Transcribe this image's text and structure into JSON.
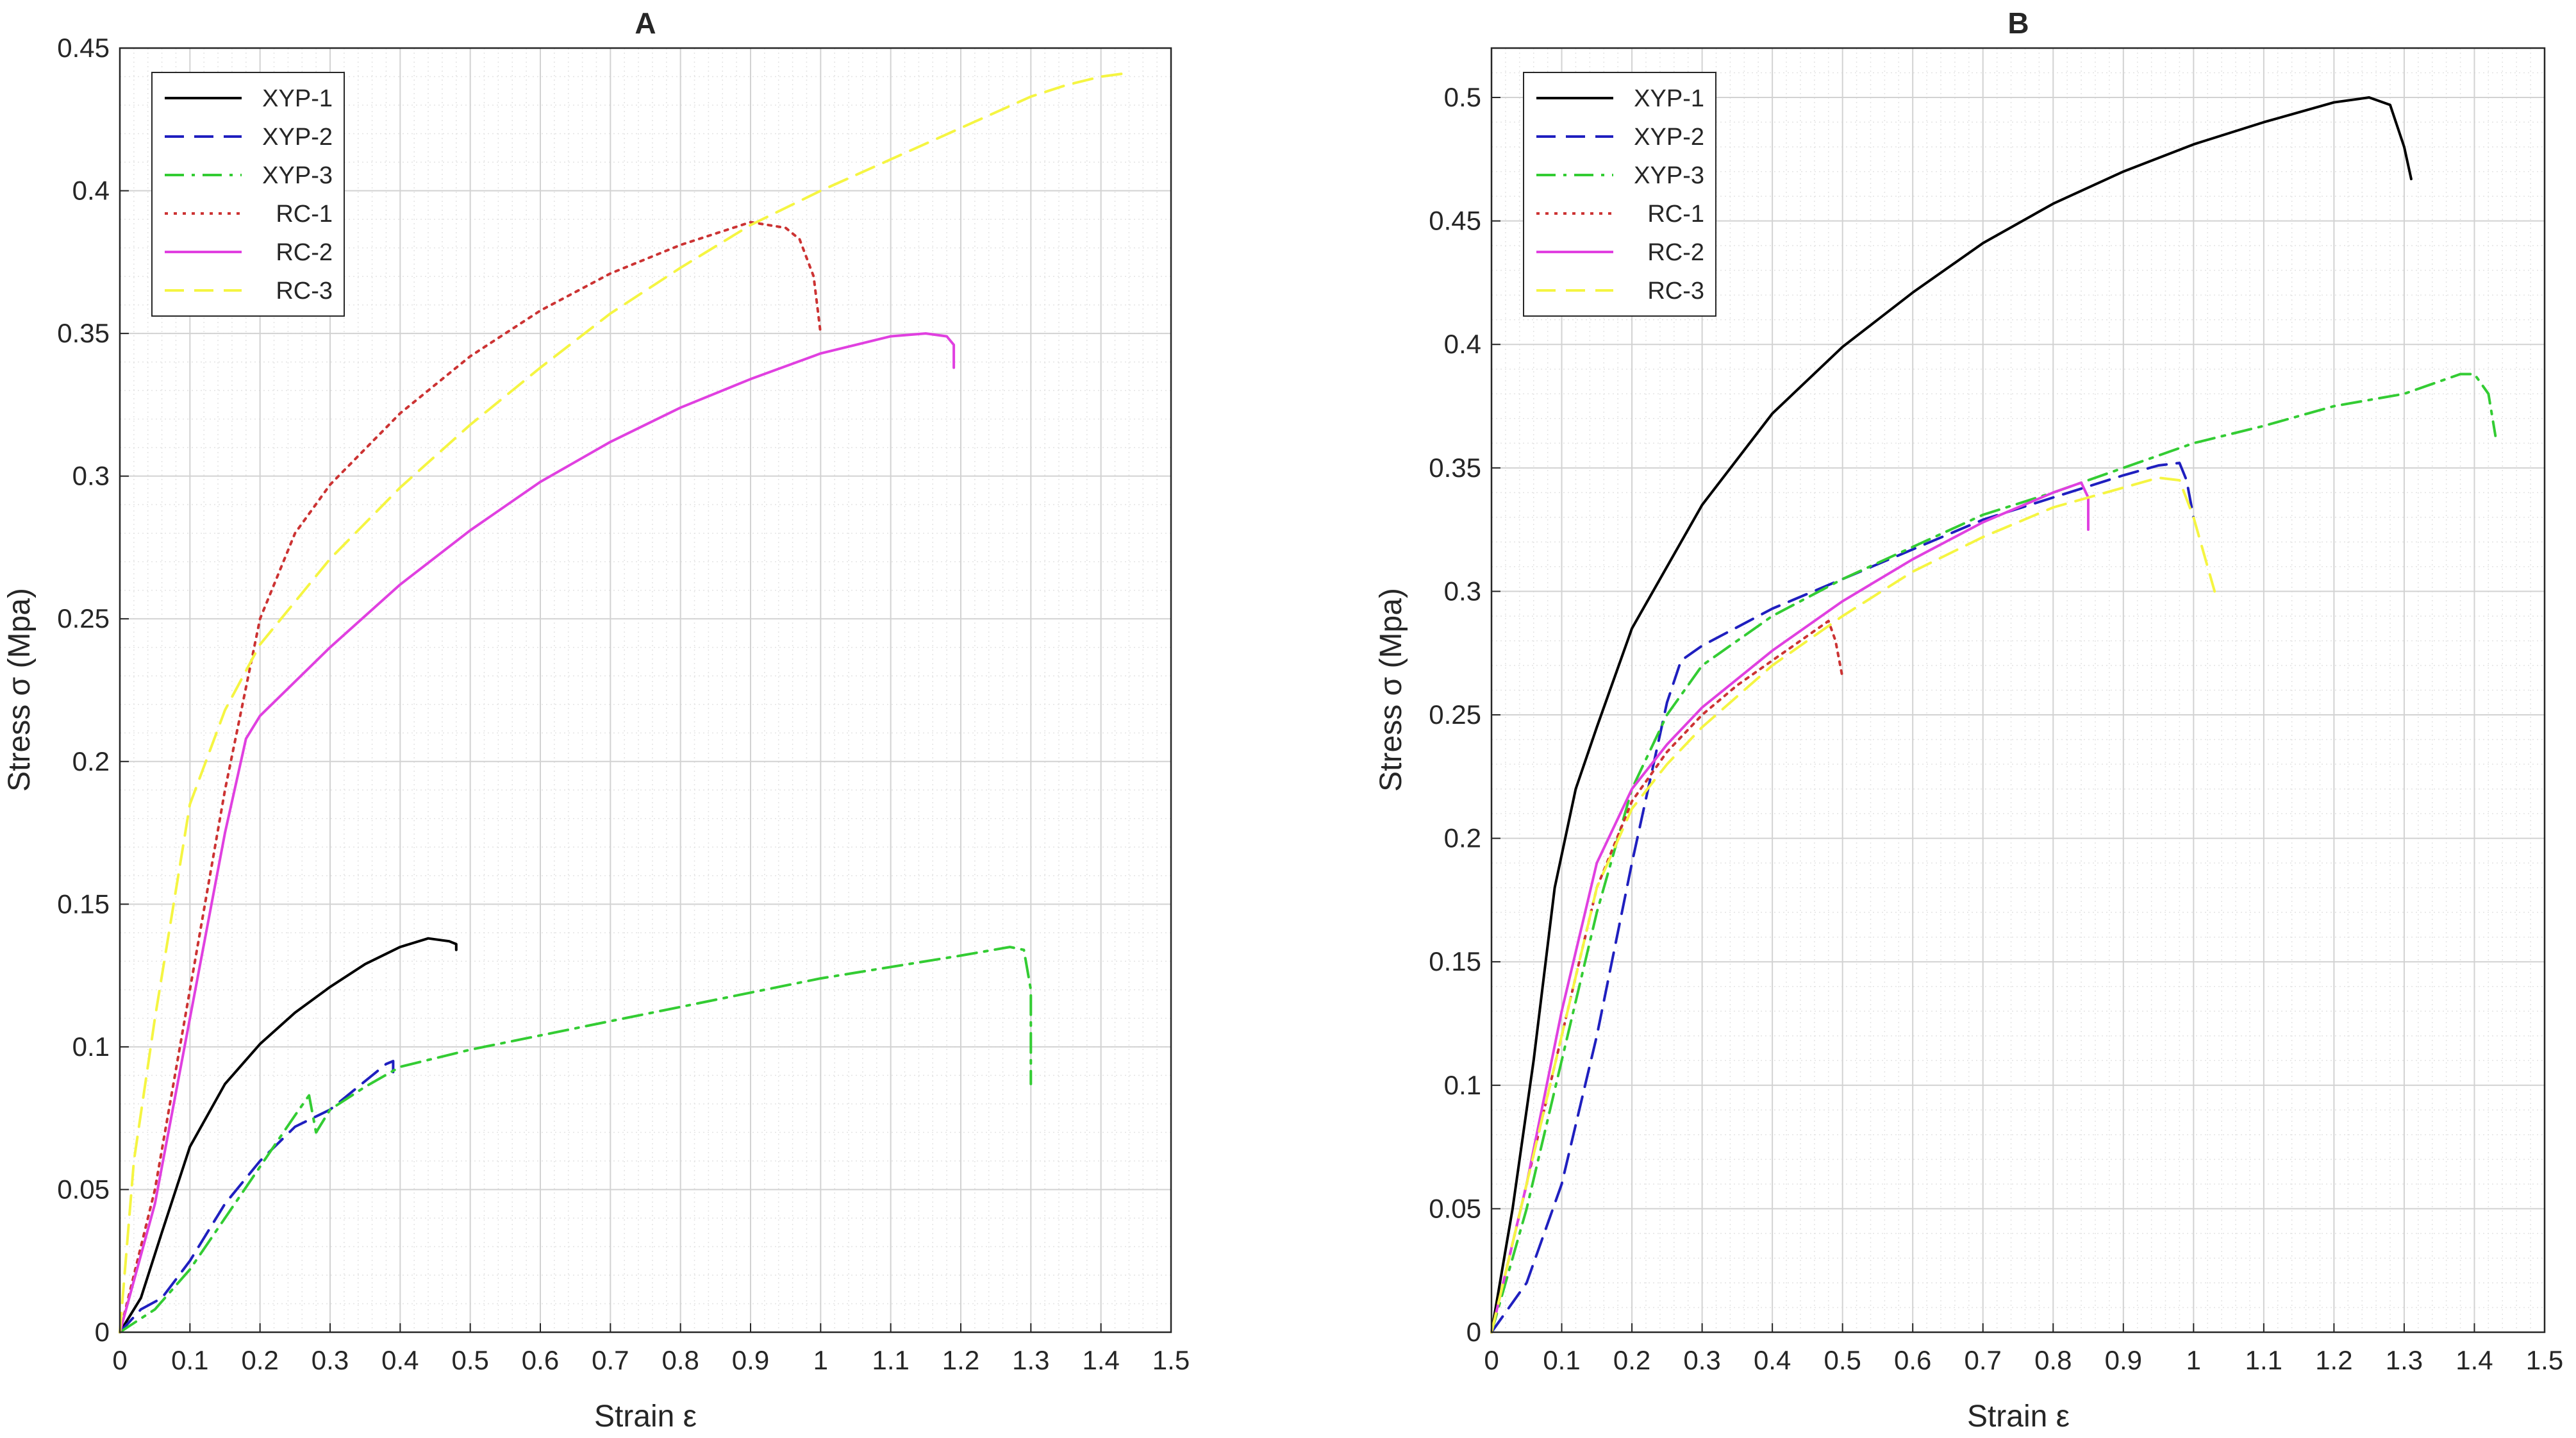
{
  "chart_data": [
    {
      "type": "line",
      "title": "A",
      "xlabel": "Strain ε",
      "ylabel": "Stress σ (Mpa)",
      "xlim": [
        0,
        1.5
      ],
      "ylim": [
        0,
        0.45
      ],
      "xticks": [
        "0",
        "0.1",
        "0.2",
        "0.3",
        "0.4",
        "0.5",
        "0.6",
        "0.7",
        "0.8",
        "0.9",
        "1",
        "1.1",
        "1.2",
        "1.3",
        "1.4",
        "1.5"
      ],
      "yticks": [
        "0",
        "0.05",
        "0.1",
        "0.15",
        "0.2",
        "0.25",
        "0.3",
        "0.35",
        "0.4",
        "0.45"
      ],
      "grid": true,
      "legend_position": "top-left",
      "series": [
        {
          "name": "XYP-1",
          "color": "#000000",
          "dash": "solid",
          "x": [
            0,
            0.03,
            0.06,
            0.1,
            0.15,
            0.2,
            0.25,
            0.3,
            0.35,
            0.4,
            0.44,
            0.47,
            0.48,
            0.48
          ],
          "y": [
            0,
            0.012,
            0.035,
            0.065,
            0.087,
            0.101,
            0.112,
            0.121,
            0.129,
            0.135,
            0.138,
            0.137,
            0.136,
            0.134
          ]
        },
        {
          "name": "XYP-2",
          "color": "#1f1fbf",
          "dash": "dashed",
          "x": [
            0,
            0.03,
            0.06,
            0.1,
            0.15,
            0.2,
            0.25,
            0.3,
            0.35,
            0.38,
            0.39,
            0.39
          ],
          "y": [
            0,
            0.008,
            0.012,
            0.025,
            0.045,
            0.06,
            0.072,
            0.078,
            0.088,
            0.094,
            0.095,
            0.088
          ]
        },
        {
          "name": "XYP-3",
          "color": "#33cc33",
          "dash": "dashdot",
          "x": [
            0,
            0.05,
            0.1,
            0.15,
            0.2,
            0.25,
            0.27,
            0.28,
            0.3,
            0.35,
            0.4,
            0.5,
            0.6,
            0.7,
            0.8,
            0.9,
            1.0,
            1.1,
            1.2,
            1.27,
            1.29,
            1.3,
            1.3
          ],
          "y": [
            0,
            0.008,
            0.022,
            0.04,
            0.058,
            0.076,
            0.083,
            0.07,
            0.078,
            0.086,
            0.093,
            0.099,
            0.104,
            0.109,
            0.114,
            0.119,
            0.124,
            0.128,
            0.132,
            0.135,
            0.134,
            0.12,
            0.087
          ]
        },
        {
          "name": "RC-1",
          "color": "#cc3333",
          "dash": "dotted",
          "x": [
            0,
            0.05,
            0.1,
            0.15,
            0.2,
            0.25,
            0.3,
            0.4,
            0.5,
            0.6,
            0.7,
            0.8,
            0.85,
            0.9,
            0.95,
            0.97,
            0.99,
            1.0
          ],
          "y": [
            0,
            0.05,
            0.12,
            0.19,
            0.25,
            0.28,
            0.297,
            0.322,
            0.342,
            0.358,
            0.371,
            0.381,
            0.385,
            0.389,
            0.387,
            0.383,
            0.37,
            0.35
          ]
        },
        {
          "name": "RC-2",
          "color": "#e040e0",
          "dash": "solid",
          "x": [
            0,
            0.05,
            0.1,
            0.15,
            0.18,
            0.2,
            0.3,
            0.4,
            0.5,
            0.6,
            0.7,
            0.8,
            0.9,
            1.0,
            1.1,
            1.15,
            1.18,
            1.19,
            1.19
          ],
          "y": [
            0,
            0.045,
            0.11,
            0.175,
            0.208,
            0.216,
            0.24,
            0.262,
            0.281,
            0.298,
            0.312,
            0.324,
            0.334,
            0.343,
            0.349,
            0.35,
            0.349,
            0.346,
            0.338
          ]
        },
        {
          "name": "RC-3",
          "color": "#f5f542",
          "dash": "dashed",
          "x": [
            0,
            0.02,
            0.05,
            0.08,
            0.1,
            0.15,
            0.2,
            0.3,
            0.4,
            0.5,
            0.6,
            0.7,
            0.8,
            0.9,
            1.0,
            1.1,
            1.2,
            1.3,
            1.35,
            1.4,
            1.43,
            1.44
          ],
          "y": [
            0,
            0.06,
            0.11,
            0.155,
            0.185,
            0.218,
            0.241,
            0.271,
            0.296,
            0.318,
            0.338,
            0.357,
            0.373,
            0.388,
            0.4,
            0.411,
            0.422,
            0.433,
            0.437,
            0.44,
            0.441,
            0.442
          ]
        }
      ]
    },
    {
      "type": "line",
      "title": "B",
      "xlabel": "Strain ε",
      "ylabel": "Stress σ (Mpa)",
      "xlim": [
        0,
        1.5
      ],
      "ylim": [
        0,
        0.52
      ],
      "xticks": [
        "0",
        "0.1",
        "0.2",
        "0.3",
        "0.4",
        "0.5",
        "0.6",
        "0.7",
        "0.8",
        "0.9",
        "1",
        "1.1",
        "1.2",
        "1.3",
        "1.4",
        "1.5"
      ],
      "yticks": [
        "0",
        "0.05",
        "0.1",
        "0.15",
        "0.2",
        "0.25",
        "0.3",
        "0.35",
        "0.4",
        "0.45",
        "0.5"
      ],
      "grid": true,
      "legend_position": "top-left",
      "series": [
        {
          "name": "XYP-1",
          "color": "#000000",
          "dash": "solid",
          "x": [
            0,
            0.03,
            0.06,
            0.09,
            0.12,
            0.15,
            0.2,
            0.3,
            0.4,
            0.5,
            0.6,
            0.7,
            0.8,
            0.9,
            1.0,
            1.1,
            1.2,
            1.25,
            1.28,
            1.3,
            1.31
          ],
          "y": [
            0,
            0.05,
            0.11,
            0.18,
            0.22,
            0.245,
            0.285,
            0.335,
            0.372,
            0.399,
            0.421,
            0.441,
            0.457,
            0.47,
            0.481,
            0.49,
            0.498,
            0.5,
            0.497,
            0.48,
            0.467
          ]
        },
        {
          "name": "XYP-2",
          "color": "#1f1fbf",
          "dash": "dashed",
          "x": [
            0,
            0.05,
            0.1,
            0.15,
            0.2,
            0.25,
            0.27,
            0.3,
            0.4,
            0.5,
            0.6,
            0.7,
            0.8,
            0.9,
            0.95,
            0.98,
            0.99,
            1.0
          ],
          "y": [
            0,
            0.02,
            0.06,
            0.12,
            0.19,
            0.255,
            0.272,
            0.278,
            0.293,
            0.305,
            0.317,
            0.329,
            0.338,
            0.347,
            0.351,
            0.352,
            0.345,
            0.33
          ]
        },
        {
          "name": "XYP-3",
          "color": "#33cc33",
          "dash": "dashdot",
          "x": [
            0,
            0.05,
            0.1,
            0.15,
            0.2,
            0.25,
            0.3,
            0.4,
            0.5,
            0.6,
            0.7,
            0.8,
            0.9,
            1.0,
            1.1,
            1.2,
            1.3,
            1.35,
            1.38,
            1.4,
            1.42,
            1.43
          ],
          "y": [
            0,
            0.05,
            0.11,
            0.17,
            0.22,
            0.25,
            0.27,
            0.29,
            0.305,
            0.318,
            0.331,
            0.34,
            0.35,
            0.36,
            0.367,
            0.375,
            0.38,
            0.385,
            0.388,
            0.388,
            0.38,
            0.363
          ]
        },
        {
          "name": "RC-1",
          "color": "#cc3333",
          "dash": "dotted",
          "x": [
            0,
            0.05,
            0.1,
            0.15,
            0.2,
            0.25,
            0.3,
            0.35,
            0.4,
            0.45,
            0.48,
            0.49,
            0.5
          ],
          "y": [
            0,
            0.06,
            0.12,
            0.18,
            0.215,
            0.235,
            0.25,
            0.262,
            0.272,
            0.282,
            0.288,
            0.28,
            0.265
          ]
        },
        {
          "name": "RC-2",
          "color": "#e040e0",
          "dash": "solid",
          "x": [
            0,
            0.05,
            0.1,
            0.15,
            0.2,
            0.25,
            0.3,
            0.4,
            0.5,
            0.6,
            0.7,
            0.8,
            0.84,
            0.85,
            0.85
          ],
          "y": [
            0,
            0.06,
            0.13,
            0.19,
            0.22,
            0.238,
            0.253,
            0.276,
            0.296,
            0.313,
            0.328,
            0.34,
            0.344,
            0.338,
            0.325
          ]
        },
        {
          "name": "RC-3",
          "color": "#f5f542",
          "dash": "dashed",
          "x": [
            0,
            0.05,
            0.1,
            0.15,
            0.2,
            0.25,
            0.3,
            0.4,
            0.5,
            0.6,
            0.7,
            0.8,
            0.9,
            0.95,
            0.98,
            1.0,
            1.02,
            1.03
          ],
          "y": [
            0,
            0.06,
            0.12,
            0.18,
            0.212,
            0.23,
            0.245,
            0.27,
            0.29,
            0.308,
            0.322,
            0.334,
            0.342,
            0.346,
            0.345,
            0.33,
            0.31,
            0.3
          ]
        }
      ]
    }
  ]
}
